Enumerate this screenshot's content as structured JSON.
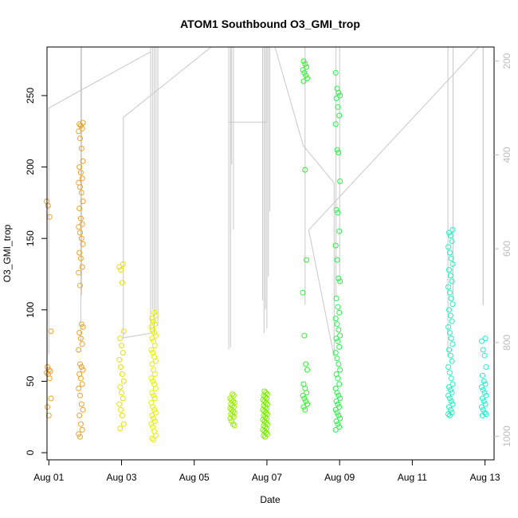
{
  "chart_data": {
    "type": "scatter",
    "title": "ATOM1 Southbound O3_GMI_trop",
    "xlabel": "Date",
    "ylabel": "O3_GMI_trop",
    "xlim": [
      -0.05,
      12.25
    ],
    "ylim": [
      -5,
      284
    ],
    "x_ticks": [
      {
        "value": 0,
        "label": "Aug 01"
      },
      {
        "value": 2,
        "label": "Aug 03"
      },
      {
        "value": 4,
        "label": "Aug 05"
      },
      {
        "value": 6,
        "label": "Aug 07"
      },
      {
        "value": 8,
        "label": "Aug 09"
      },
      {
        "value": 10,
        "label": "Aug 11"
      },
      {
        "value": 12,
        "label": "Aug 13"
      }
    ],
    "y_ticks": [
      0,
      50,
      100,
      150,
      200,
      250
    ],
    "secondary_axis": {
      "position": "right",
      "reversed": true,
      "range": [
        1050,
        170
      ],
      "ticks": [
        200,
        400,
        600,
        800,
        1000
      ],
      "color": "#bdbdbd"
    },
    "grid": false,
    "legend": "none",
    "clusters": [
      {
        "x": 0.0,
        "color": "#F0A030",
        "values": [
          176,
          173,
          165,
          85,
          60,
          58,
          57,
          56,
          55,
          52,
          38,
          32,
          26
        ]
      },
      {
        "x": 0.88,
        "color": "#EDA227",
        "values": [
          231,
          230,
          229,
          227,
          225,
          220,
          213,
          204,
          200,
          196,
          192,
          189,
          186,
          182,
          176,
          171,
          164,
          160,
          158,
          154,
          150,
          146,
          140,
          136,
          130,
          126,
          117,
          90,
          88,
          84,
          80,
          76,
          72,
          62,
          60,
          58,
          55,
          52,
          48,
          45,
          40,
          34,
          30,
          26,
          20,
          16,
          13,
          11
        ]
      },
      {
        "x": 2.0,
        "color": "#E8E000",
        "values": [
          132,
          130,
          128,
          119,
          85,
          80,
          75,
          70,
          65,
          60,
          55,
          50,
          46,
          42,
          38,
          34,
          30,
          26,
          20,
          17
        ]
      },
      {
        "x": 2.88,
        "color": "#E5F000",
        "values": [
          98,
          96,
          94,
          92,
          90,
          88,
          86,
          84,
          82,
          80,
          78,
          75,
          72,
          70,
          67,
          64,
          62,
          58,
          55,
          52,
          50,
          48,
          45,
          42,
          40,
          38,
          35,
          32,
          30,
          28,
          26,
          24,
          22,
          20,
          18,
          15,
          12,
          10,
          9
        ]
      },
      {
        "x": 5.05,
        "color": "#9AF000",
        "values": [
          41,
          40,
          38,
          37,
          36,
          35,
          34,
          33,
          32,
          31,
          30,
          29,
          28,
          27,
          26,
          25,
          24,
          22,
          20,
          19
        ]
      },
      {
        "x": 5.95,
        "color": "#7AF000",
        "values": [
          43,
          42,
          41,
          40,
          39,
          38,
          37,
          36,
          35,
          34,
          33,
          32,
          31,
          30,
          29,
          28,
          27,
          26,
          25,
          24,
          23,
          22,
          21,
          20,
          19,
          18,
          17,
          16,
          15,
          14,
          13,
          12,
          11
        ]
      },
      {
        "x": 7.05,
        "color": "#30F030",
        "values": [
          274,
          272,
          270,
          268,
          266,
          264,
          262,
          260,
          198,
          135,
          112,
          82,
          62,
          58,
          48,
          45,
          42,
          40,
          38,
          36,
          34,
          32,
          30
        ]
      },
      {
        "x": 7.95,
        "color": "#28F04A",
        "values": [
          266,
          255,
          252,
          250,
          248,
          242,
          236,
          230,
          212,
          210,
          190,
          170,
          168,
          155,
          145,
          135,
          122,
          120,
          108,
          102,
          98,
          94,
          90,
          86,
          82,
          80,
          78,
          74,
          70,
          66,
          62,
          58,
          55,
          52,
          48,
          45,
          42,
          40,
          38,
          36,
          34,
          32,
          30,
          28,
          26,
          24,
          22,
          20,
          18,
          16
        ]
      },
      {
        "x": 11.05,
        "color": "#1EF0C0",
        "values": [
          156,
          154,
          152,
          148,
          144,
          140,
          136,
          132,
          128,
          124,
          120,
          116,
          112,
          108,
          104,
          100,
          96,
          92,
          88,
          84,
          80,
          76,
          72,
          68,
          64,
          60,
          56,
          52,
          48,
          46,
          44,
          42,
          40,
          38,
          36,
          34,
          32,
          30,
          28,
          27,
          26
        ]
      },
      {
        "x": 11.97,
        "color": "#1EF0D0",
        "values": [
          80,
          78,
          72,
          68,
          60,
          54,
          50,
          48,
          46,
          44,
          42,
          40,
          38,
          36,
          34,
          32,
          30,
          28,
          27,
          26
        ]
      }
    ],
    "pressure_polyline": [
      [
        0.0,
        825
      ],
      [
        0.0,
        300
      ],
      [
        2.8,
        180
      ],
      [
        2.8,
        100
      ],
      [
        2.8,
        780
      ],
      [
        2.05,
        790
      ],
      [
        2.05,
        320
      ],
      [
        4.95,
        140
      ],
      [
        4.95,
        815
      ],
      [
        4.95,
        330
      ],
      [
        6.0,
        330
      ],
      [
        6.0,
        110
      ],
      [
        7.0,
        380
      ],
      [
        7.85,
        460
      ],
      [
        7.85,
        830
      ],
      [
        7.15,
        560
      ],
      [
        11.95,
        160
      ],
      [
        11.95,
        720
      ]
    ],
    "pressure_spikes": [
      {
        "x": 0.88,
        "bottom": 800
      },
      {
        "x": 0.9,
        "bottom": 700
      },
      {
        "x": 2.85,
        "bottom": 730
      },
      {
        "x": 2.9,
        "bottom": 780
      },
      {
        "x": 2.95,
        "bottom": 740
      },
      {
        "x": 3.0,
        "bottom": 765
      },
      {
        "x": 5.0,
        "bottom": 810
      },
      {
        "x": 5.03,
        "bottom": 420
      },
      {
        "x": 5.08,
        "bottom": 560
      },
      {
        "x": 5.88,
        "bottom": 710
      },
      {
        "x": 5.92,
        "bottom": 780
      },
      {
        "x": 5.96,
        "bottom": 730
      },
      {
        "x": 6.0,
        "bottom": 770
      },
      {
        "x": 6.04,
        "bottom": 660
      },
      {
        "x": 6.08,
        "bottom": 520
      },
      {
        "x": 7.05,
        "bottom": 720
      },
      {
        "x": 7.9,
        "bottom": 700
      },
      {
        "x": 8.0,
        "bottom": 660
      },
      {
        "x": 10.98,
        "bottom": 830
      },
      {
        "x": 11.12,
        "bottom": 710
      },
      {
        "x": 11.95,
        "bottom": 720
      }
    ],
    "pressure_line_color": "#c8c8c8"
  }
}
